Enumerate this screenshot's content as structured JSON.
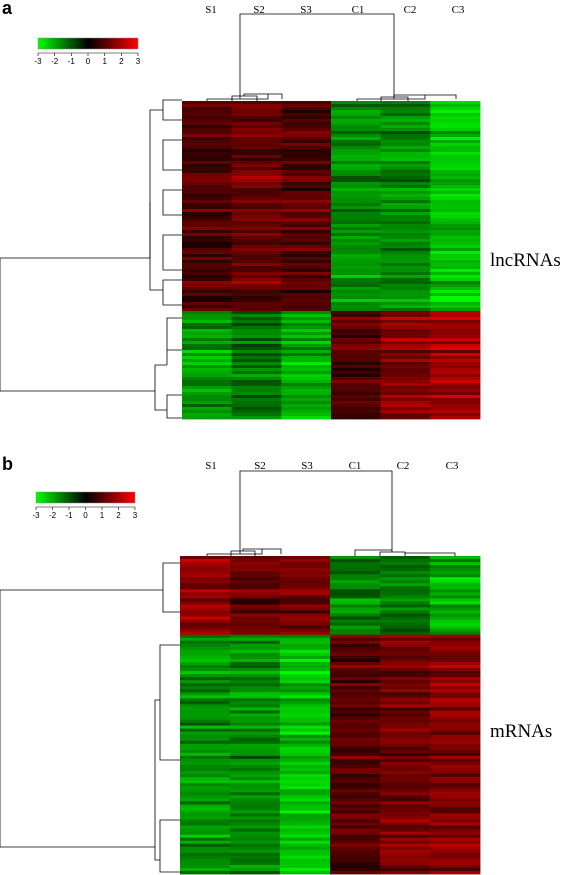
{
  "colors": {
    "low": "#00ff00",
    "mid": "#000000",
    "high": "#ff0000"
  },
  "chart_data": [
    {
      "type": "heatmap",
      "panel": "a",
      "row_label": "lncRNAs",
      "columns": [
        "S1",
        "S2",
        "S3",
        "C1",
        "C2",
        "C3"
      ],
      "color_scale": {
        "ticks": [
          "-3",
          "-2",
          "-1",
          "0",
          "1",
          "2",
          "3"
        ],
        "range": [
          -3,
          3
        ]
      },
      "row_clusters": [
        {
          "rows": 70,
          "values": [
            1.0,
            1.3,
            1.1,
            -1.6,
            -1.5,
            -2.2
          ]
        },
        {
          "rows": 36,
          "values": [
            -1.8,
            -1.3,
            -2.0,
            1.1,
            1.6,
            1.9
          ]
        }
      ]
    },
    {
      "type": "heatmap",
      "panel": "b",
      "row_label": "mRNAs",
      "columns": [
        "S1",
        "S2",
        "S3",
        "C1",
        "C2",
        "C3"
      ],
      "color_scale": {
        "ticks": [
          "-3",
          "-2",
          "-1",
          "0",
          "1",
          "2",
          "3"
        ],
        "range": [
          -3,
          3
        ]
      },
      "row_clusters": [
        {
          "rows": 26,
          "values": [
            1.6,
            1.2,
            1.2,
            -1.5,
            -1.4,
            -2.1
          ]
        },
        {
          "rows": 79,
          "values": [
            -1.7,
            -1.6,
            -2.2,
            1.0,
            1.4,
            1.6
          ]
        }
      ]
    }
  ]
}
